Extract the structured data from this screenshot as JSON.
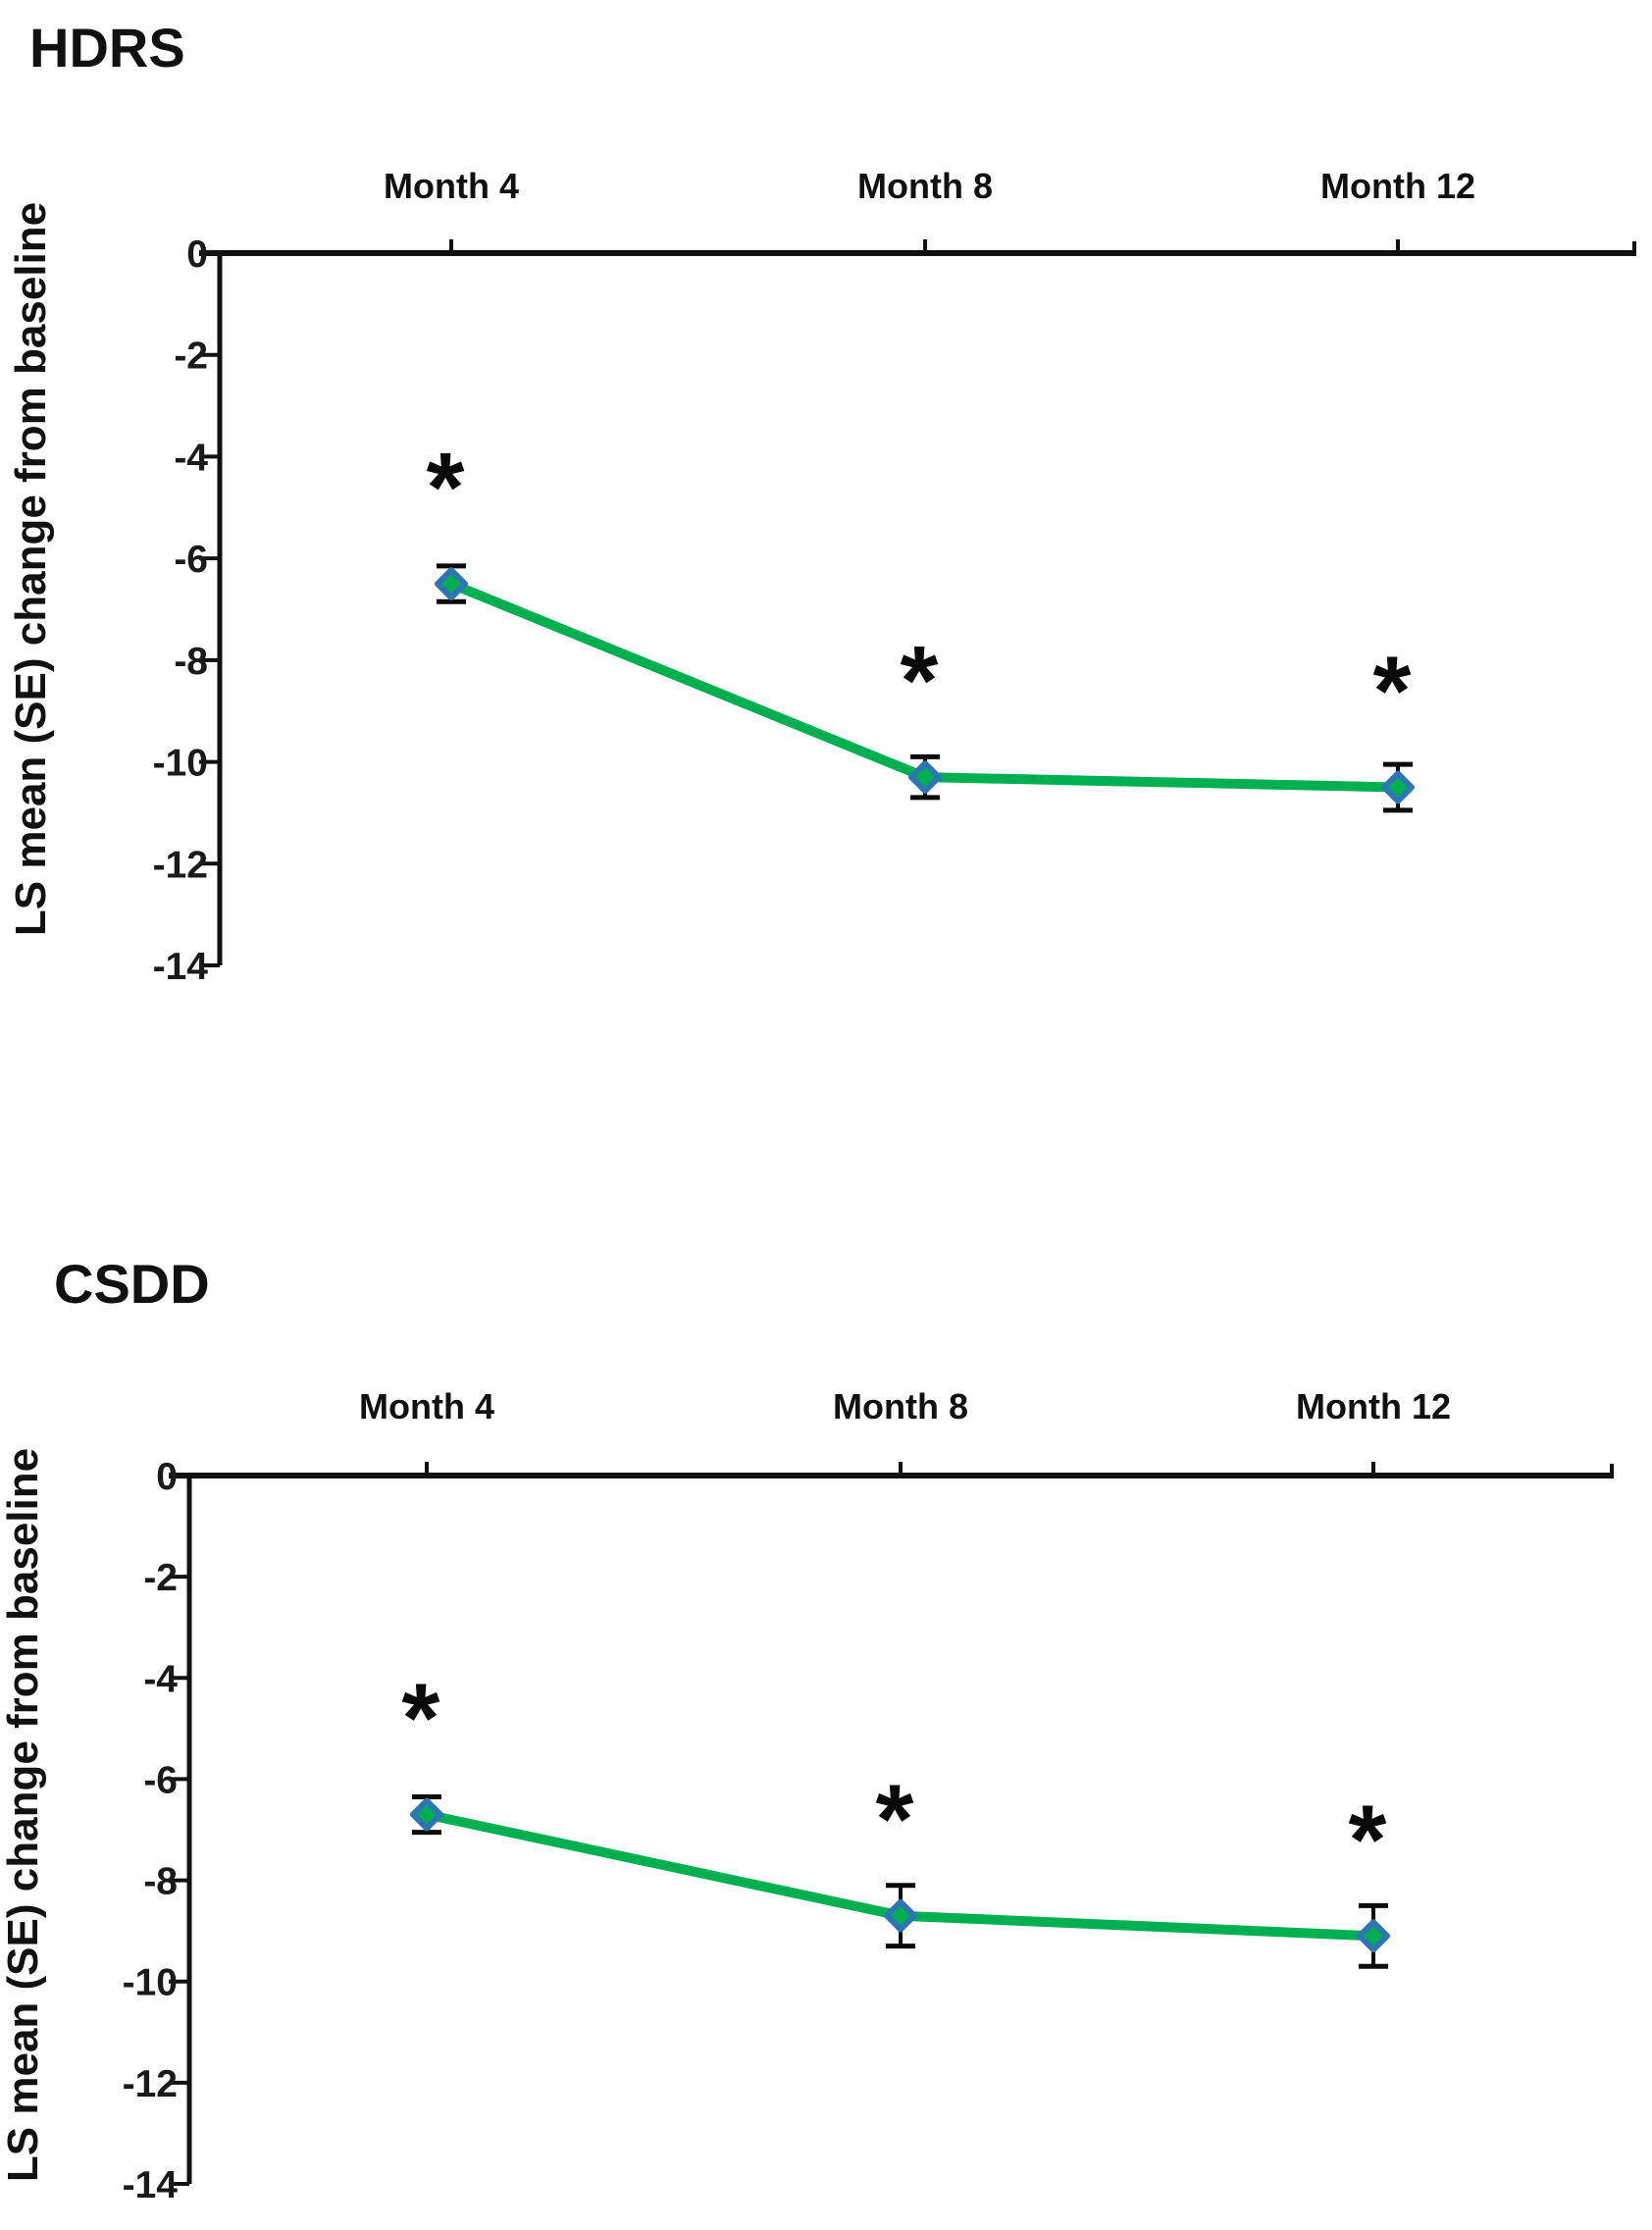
{
  "figure": {
    "background": "#ffffff"
  },
  "colors": {
    "line_green": "#00B050",
    "marker_fill_green": "#00B050",
    "marker_border_blue": "#2E75B6",
    "axis_black": "#111111",
    "error_bar_black": "#0a0a0a"
  },
  "chart_data": [
    {
      "type": "line",
      "title": "HDRS",
      "ylabel": "LS mean (SE) change from baseline",
      "xlabel": "",
      "categories": [
        "Month 4",
        "Month 8",
        "Month 12"
      ],
      "series": [
        {
          "name": "LS mean (SE) change from baseline",
          "values": [
            -6.5,
            -10.3,
            -10.5
          ],
          "se": [
            0.35,
            0.4,
            0.45
          ]
        }
      ],
      "annotations": [
        "*",
        "*",
        "*"
      ],
      "yticks": [
        0,
        -2,
        -4,
        -6,
        -8,
        -10,
        -12,
        -14
      ],
      "ylim": [
        -14,
        0
      ],
      "x_axis_position": "top",
      "grid": false,
      "legend": "none",
      "marker": "diamond"
    },
    {
      "type": "line",
      "title": "CSDD",
      "ylabel": "LS mean (SE) change from baseline",
      "xlabel": "",
      "categories": [
        "Month 4",
        "Month 8",
        "Month 12"
      ],
      "series": [
        {
          "name": "LS mean (SE) change from baseline",
          "values": [
            -6.7,
            -8.7,
            -9.1
          ],
          "se": [
            0.35,
            0.6,
            0.6
          ]
        }
      ],
      "annotations": [
        "*",
        "*",
        "*"
      ],
      "yticks": [
        0,
        -2,
        -4,
        -6,
        -8,
        -10,
        -12,
        -14
      ],
      "ylim": [
        -14,
        0
      ],
      "x_axis_position": "top",
      "grid": false,
      "legend": "none",
      "marker": "diamond"
    }
  ]
}
